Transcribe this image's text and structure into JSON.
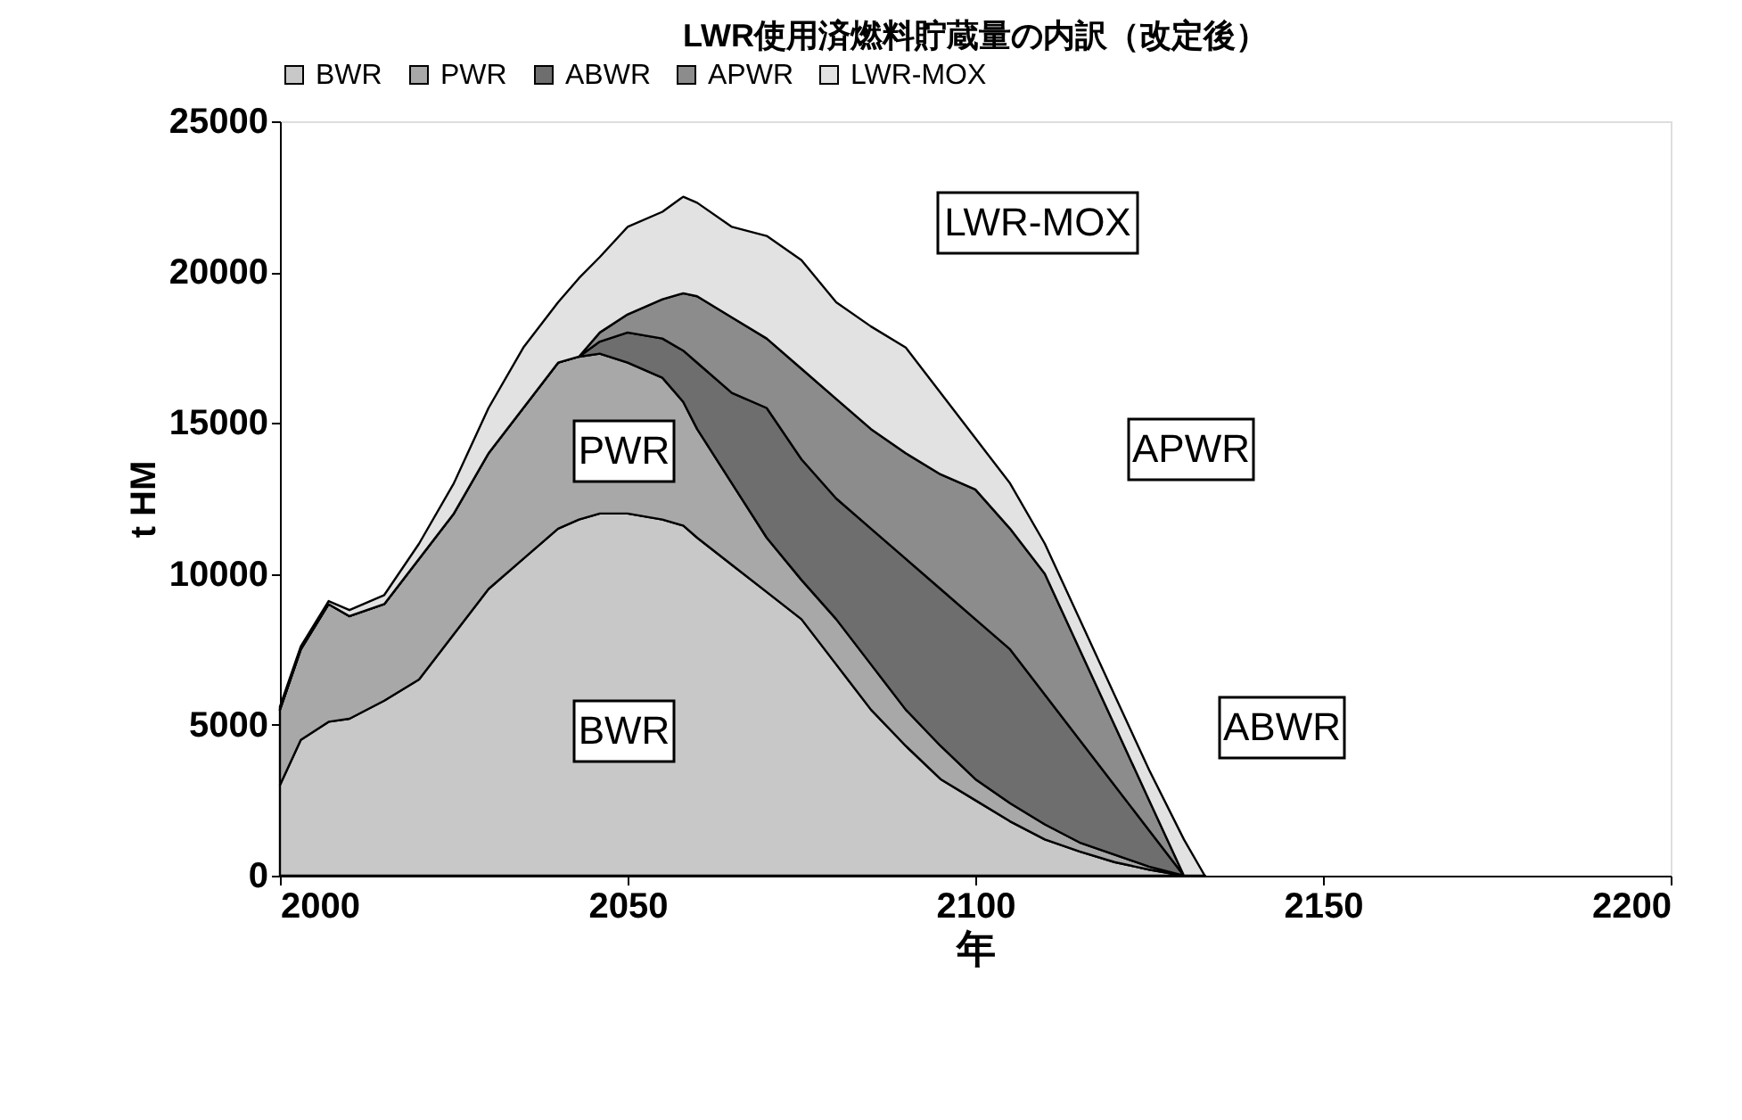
{
  "chart_data": {
    "type": "area",
    "stacked": true,
    "title": "LWR使用済燃料貯蔵量の内訳（改定後）",
    "xlabel": "年",
    "ylabel": "t HM",
    "x": [
      2000,
      2003,
      2007,
      2010,
      2015,
      2020,
      2025,
      2030,
      2035,
      2040,
      2043,
      2046,
      2050,
      2055,
      2058,
      2060,
      2065,
      2070,
      2075,
      2080,
      2085,
      2090,
      2095,
      2100,
      2105,
      2110,
      2115,
      2120,
      2125,
      2130,
      2133
    ],
    "series": [
      {
        "name": "BWR",
        "color": "#c8c8c8",
        "values": [
          3000,
          4500,
          5100,
          5200,
          5800,
          6500,
          8000,
          9500,
          10500,
          11500,
          11800,
          12000,
          12000,
          11800,
          11600,
          11200,
          10300,
          9400,
          8500,
          7000,
          5500,
          4300,
          3200,
          2500,
          1800,
          1200,
          800,
          450,
          200,
          0,
          0
        ]
      },
      {
        "name": "PWR",
        "color": "#a8a8a8",
        "values": [
          2500,
          3000,
          3900,
          3400,
          3200,
          4000,
          4000,
          4500,
          5000,
          5500,
          5400,
          5300,
          5000,
          4700,
          4100,
          3600,
          2700,
          1800,
          1300,
          1500,
          1500,
          1200,
          1100,
          700,
          600,
          500,
          300,
          250,
          100,
          0,
          0
        ]
      },
      {
        "name": "ABWR",
        "color": "#6e6e6e",
        "values": [
          0,
          0,
          0,
          0,
          0,
          0,
          0,
          0,
          0,
          0,
          0,
          400,
          1000,
          1300,
          1700,
          2200,
          3000,
          4300,
          4000,
          4000,
          4500,
          5000,
          5200,
          5300,
          5100,
          4300,
          3400,
          2300,
          1200,
          0,
          0
        ]
      },
      {
        "name": "APWR",
        "color": "#8c8c8c",
        "values": [
          0,
          0,
          0,
          0,
          0,
          0,
          0,
          0,
          0,
          0,
          0,
          300,
          600,
          1300,
          1900,
          2200,
          2500,
          2300,
          3000,
          3300,
          3300,
          3500,
          3800,
          4300,
          4000,
          4000,
          3000,
          2000,
          1000,
          0,
          0
        ]
      },
      {
        "name": "LWR-MOX",
        "color": "#e2e2e2",
        "values": [
          100,
          100,
          100,
          200,
          300,
          500,
          1000,
          1500,
          2000,
          2000,
          2600,
          2500,
          2900,
          2900,
          3200,
          3100,
          3000,
          3400,
          3600,
          3200,
          3400,
          3500,
          2700,
          1700,
          1500,
          1000,
          1000,
          1000,
          1000,
          1200,
          0
        ]
      }
    ],
    "annotations": [
      "PWR",
      "BWR",
      "LWR-MOX",
      "APWR",
      "ABWR"
    ],
    "xlim": [
      2000,
      2200
    ],
    "xticks": [
      2000,
      2050,
      2100,
      2150,
      2200
    ],
    "ylim": [
      0,
      25000
    ],
    "yticks": [
      0,
      5000,
      10000,
      15000,
      20000,
      25000
    ],
    "legend": "top",
    "grid": false
  }
}
